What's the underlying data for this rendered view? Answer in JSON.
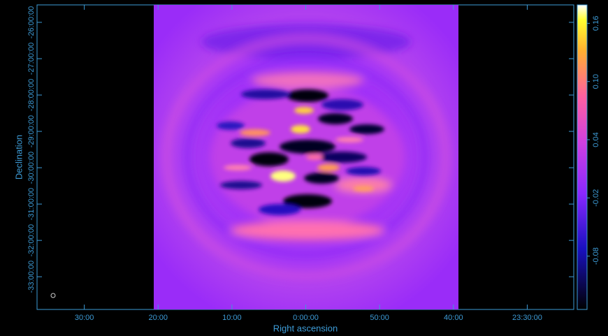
{
  "chart_data": {
    "type": "image",
    "xlabel": "Right ascension",
    "ylabel": "Declination",
    "xlim": [
      36.4,
      -36.3
    ],
    "xticks": [
      {
        "value": 30,
        "label": "30:00"
      },
      {
        "value": 20,
        "label": "20:00"
      },
      {
        "value": 10,
        "label": "10:00"
      },
      {
        "value": 0,
        "label": "0:00:00"
      },
      {
        "value": -10,
        "label": "50:00"
      },
      {
        "value": -20,
        "label": "40:00"
      },
      {
        "value": -30,
        "label": "23:30:00"
      }
    ],
    "ylim": [
      -33.9,
      -25.52
    ],
    "yticks": [
      {
        "value": -26,
        "label": "-26:00:00"
      },
      {
        "value": -27,
        "label": "-27:00:00"
      },
      {
        "value": -28,
        "label": "-28:00:00"
      },
      {
        "value": -29,
        "label": "-29:00:00"
      },
      {
        "value": -30,
        "label": "-30:00:00"
      },
      {
        "value": -31,
        "label": "-31:00:00"
      },
      {
        "value": -32,
        "label": "-32:00:00"
      },
      {
        "value": -33,
        "label": "-33:00:00"
      }
    ],
    "colorbar": {
      "lim": [
        -0.135,
        0.179
      ],
      "ticks": [
        -0.08,
        -0.02,
        0.04,
        {
          "value": 0.1,
          "label": "0.10"
        },
        0.16
      ]
    }
  }
}
